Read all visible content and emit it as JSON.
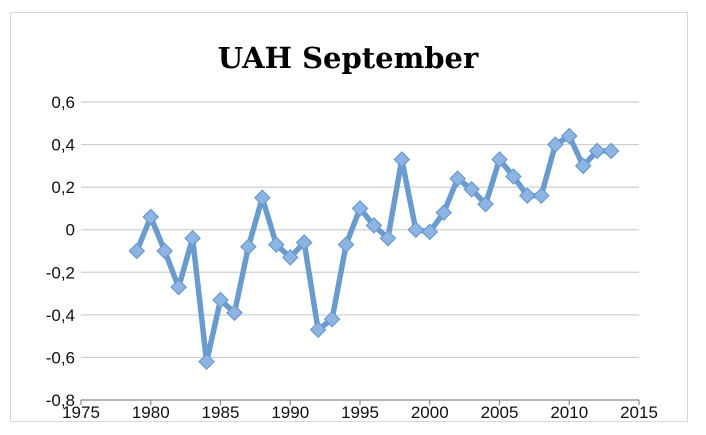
{
  "chart_data": {
    "type": "line",
    "title": "UAH  September",
    "xlabel": "",
    "ylabel": "",
    "xlim": [
      1975,
      2015
    ],
    "ylim": [
      -0.8,
      0.6
    ],
    "x_ticks": [
      1975,
      1980,
      1985,
      1990,
      1995,
      2000,
      2005,
      2010,
      2015
    ],
    "x_tick_labels": [
      "1975",
      "1980",
      "1985",
      "1990",
      "1995",
      "2000",
      "2005",
      "2010",
      "2015"
    ],
    "y_ticks": [
      0.6,
      0.4,
      0.2,
      0,
      -0.2,
      -0.4,
      -0.6,
      -0.8
    ],
    "y_tick_labels": [
      "0,6",
      "0,4",
      "0,2",
      "0",
      "-0,2",
      "-0,4",
      "-0,6",
      "-0,8"
    ],
    "grid": true,
    "legend": "none",
    "series": [
      {
        "color": "#6A9BCF",
        "marker_color": "#8DB4E2",
        "marker": "diamond",
        "x": [
          1979,
          1980,
          1981,
          1982,
          1983,
          1984,
          1985,
          1986,
          1987,
          1988,
          1989,
          1990,
          1991,
          1992,
          1993,
          1994,
          1995,
          1996,
          1997,
          1998,
          1999,
          2000,
          2001,
          2002,
          2003,
          2004,
          2005,
          2006,
          2007,
          2008,
          2009,
          2010,
          2011,
          2012,
          2013
        ],
        "y": [
          -0.1,
          0.06,
          -0.1,
          -0.27,
          -0.04,
          -0.62,
          -0.33,
          -0.39,
          -0.08,
          0.15,
          -0.07,
          -0.13,
          -0.06,
          -0.47,
          -0.42,
          -0.07,
          0.1,
          0.02,
          -0.04,
          0.33,
          0.0,
          -0.01,
          0.08,
          0.24,
          0.19,
          0.12,
          0.33,
          0.25,
          0.16,
          0.16,
          0.4,
          0.44,
          0.3,
          0.37,
          0.37
        ]
      }
    ]
  }
}
